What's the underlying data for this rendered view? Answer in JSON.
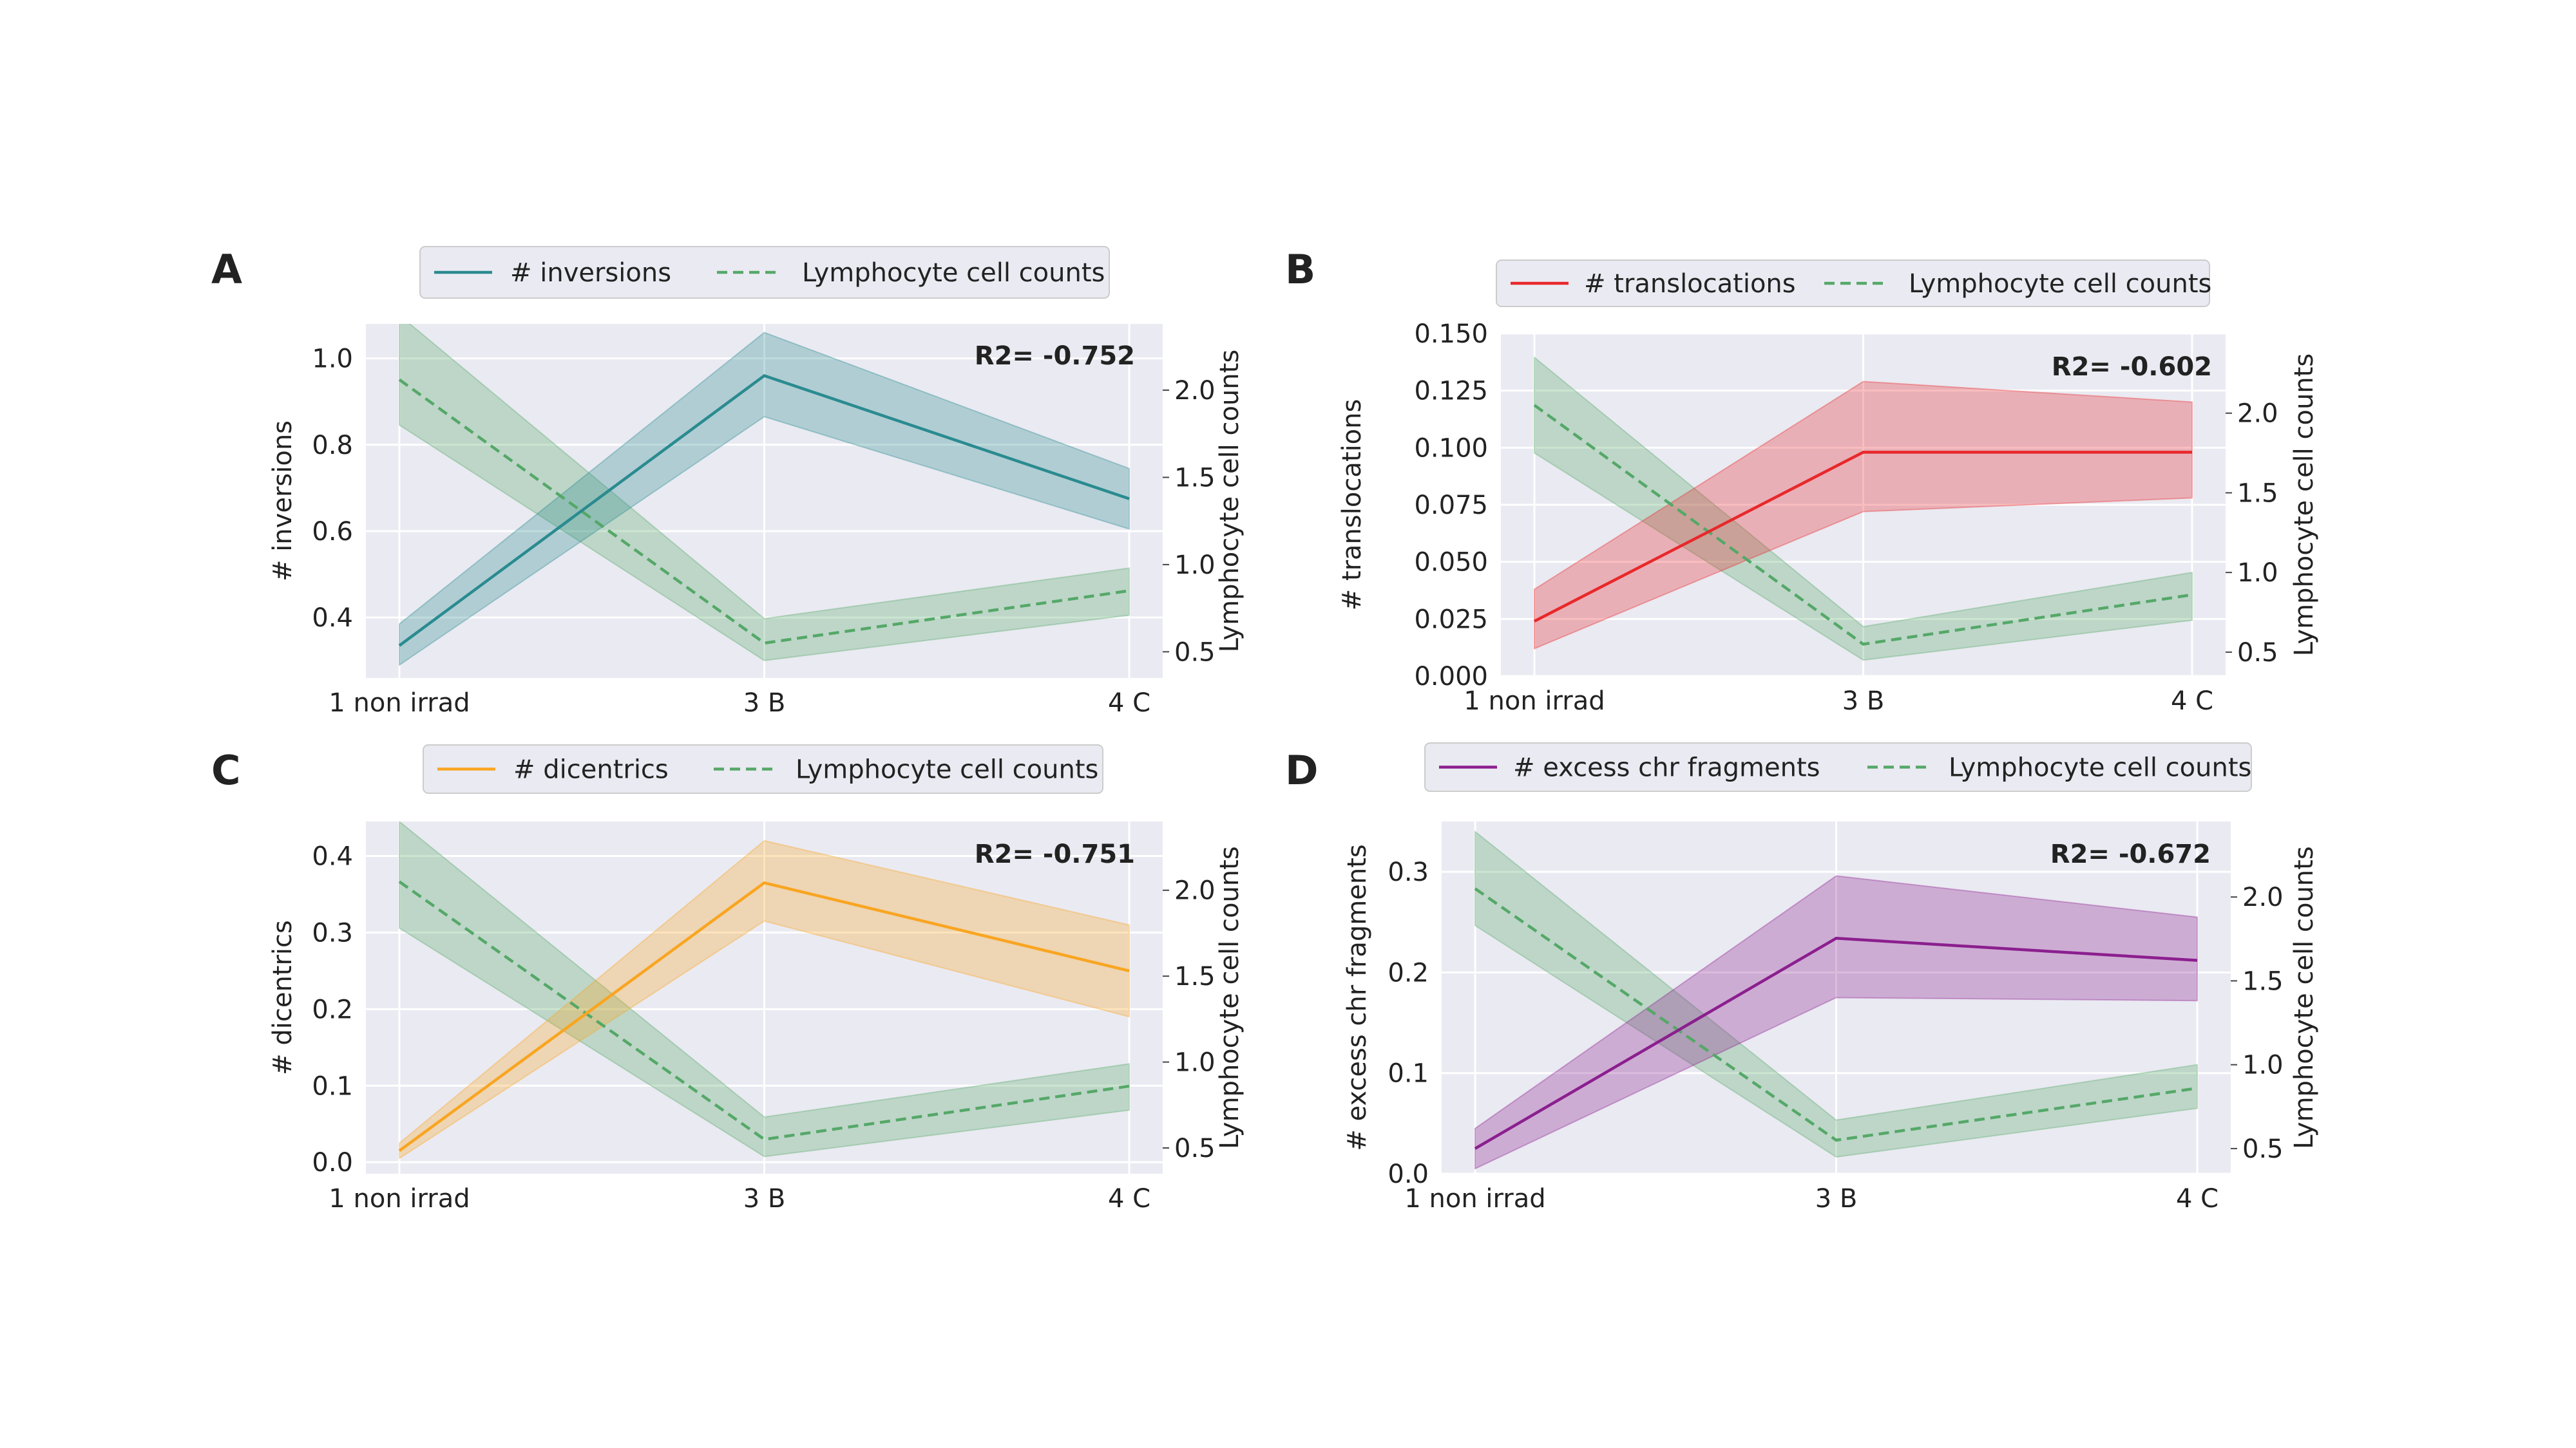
{
  "figure": {
    "panels": [
      {
        "label": "A",
        "r2_text": "R2= -0.752",
        "legend": [
          "# inversions",
          "Lymphocyte cell counts"
        ]
      },
      {
        "label": "B",
        "r2_text": "R2= -0.602",
        "legend": [
          "# translocations",
          "Lymphocyte cell counts"
        ]
      },
      {
        "label": "C",
        "r2_text": "R2= -0.751",
        "legend": [
          "# dicentrics",
          "Lymphocyte cell counts"
        ]
      },
      {
        "label": "D",
        "r2_text": "R2= -0.672",
        "legend": [
          "# excess chr fragments",
          "Lymphocyte cell counts"
        ]
      }
    ]
  },
  "colors": {
    "axes_bg": "#eaeaf2",
    "grid": "#ffffff",
    "lymphocyte": "#55a868",
    "inversions": "#2a8b8f",
    "translocations": "#e8282b",
    "dicentrics": "#f9a521",
    "fragments": "#8b1f8e"
  },
  "chart_data": [
    {
      "type": "line",
      "categories": [
        "1 non irrad",
        "3 B",
        "4 C"
      ],
      "ylabel": "# inversions",
      "y2label": "Lymphocyte cell counts",
      "ylim": [
        0.26,
        1.08
      ],
      "yticks": [
        "0.4",
        "0.6",
        "0.8",
        "1.0"
      ],
      "y2lim": [
        0.35,
        2.38
      ],
      "y2ticks": [
        "0.5",
        "1.0",
        "1.5",
        "2.0"
      ],
      "grid": true,
      "legend_position": "top-center",
      "annotation": "R2= -0.752",
      "series": [
        {
          "name": "# inversions",
          "axis": "left",
          "style": "solid",
          "color": "#2a8b8f",
          "values": [
            0.335,
            0.96,
            0.675
          ],
          "lower": [
            0.29,
            0.865,
            0.605
          ],
          "upper": [
            0.385,
            1.06,
            0.745
          ]
        },
        {
          "name": "Lymphocyte cell counts",
          "axis": "right",
          "style": "dashed",
          "color": "#55a868",
          "values": [
            2.06,
            0.55,
            0.85
          ],
          "lower": [
            1.8,
            0.45,
            0.71
          ],
          "upper": [
            2.43,
            0.69,
            0.98
          ]
        }
      ]
    },
    {
      "type": "line",
      "categories": [
        "1 non irrad",
        "3 B",
        "4 C"
      ],
      "ylabel": "# translocations",
      "y2label": "Lymphocyte cell counts",
      "ylim": [
        0.0,
        0.15
      ],
      "yticks": [
        "0.000",
        "0.025",
        "0.050",
        "0.075",
        "0.100",
        "0.125",
        "0.150"
      ],
      "y2lim": [
        0.35,
        2.5
      ],
      "y2ticks": [
        "0.5",
        "1.0",
        "1.5",
        "2.0"
      ],
      "grid": true,
      "legend_position": "top-center",
      "annotation": "R2= -0.602",
      "series": [
        {
          "name": "# translocations",
          "axis": "left",
          "style": "solid",
          "color": "#e8282b",
          "values": [
            0.024,
            0.098,
            0.098
          ],
          "lower": [
            0.012,
            0.072,
            0.078
          ],
          "upper": [
            0.038,
            0.129,
            0.12
          ]
        },
        {
          "name": "Lymphocyte cell counts",
          "axis": "right",
          "style": "dashed",
          "color": "#55a868",
          "values": [
            2.05,
            0.55,
            0.86
          ],
          "lower": [
            1.75,
            0.45,
            0.7
          ],
          "upper": [
            2.35,
            0.66,
            1.0
          ]
        }
      ]
    },
    {
      "type": "line",
      "categories": [
        "1 non irrad",
        "3 B",
        "4 C"
      ],
      "ylabel": "# dicentrics",
      "y2label": "Lymphocyte cell counts",
      "ylim": [
        -0.015,
        0.445
      ],
      "yticks": [
        "0.0",
        "0.1",
        "0.2",
        "0.3",
        "0.4"
      ],
      "y2lim": [
        0.35,
        2.4
      ],
      "y2ticks": [
        "0.5",
        "1.0",
        "1.5",
        "2.0"
      ],
      "grid": true,
      "legend_position": "top-center",
      "annotation": "R2= -0.751",
      "series": [
        {
          "name": "# dicentrics",
          "axis": "left",
          "style": "solid",
          "color": "#f9a521",
          "values": [
            0.015,
            0.365,
            0.25
          ],
          "lower": [
            0.005,
            0.315,
            0.19
          ],
          "upper": [
            0.025,
            0.42,
            0.31
          ]
        },
        {
          "name": "Lymphocyte cell counts",
          "axis": "right",
          "style": "dashed",
          "color": "#55a868",
          "values": [
            2.05,
            0.55,
            0.86
          ],
          "lower": [
            1.78,
            0.45,
            0.72
          ],
          "upper": [
            2.4,
            0.68,
            0.99
          ]
        }
      ]
    },
    {
      "type": "line",
      "categories": [
        "1 non irrad",
        "3 B",
        "4 C"
      ],
      "ylabel": "# excess chr fragments",
      "y2label": "Lymphocyte cell counts",
      "ylim": [
        0.0,
        0.35
      ],
      "yticks": [
        "0.0",
        "0.1",
        "0.2",
        "0.3"
      ],
      "y2lim": [
        0.35,
        2.45
      ],
      "y2ticks": [
        "0.5",
        "1.0",
        "1.5",
        "2.0"
      ],
      "grid": true,
      "legend_position": "top-center",
      "annotation": "R2= -0.672",
      "series": [
        {
          "name": "# excess chr fragments",
          "axis": "left",
          "style": "solid",
          "color": "#8b1f8e",
          "values": [
            0.025,
            0.234,
            0.212
          ],
          "lower": [
            0.005,
            0.175,
            0.172
          ],
          "upper": [
            0.045,
            0.296,
            0.255
          ]
        },
        {
          "name": "Lymphocyte cell counts",
          "axis": "right",
          "style": "dashed",
          "color": "#55a868",
          "values": [
            2.05,
            0.55,
            0.86
          ],
          "lower": [
            1.83,
            0.45,
            0.74
          ],
          "upper": [
            2.39,
            0.67,
            1.0
          ]
        }
      ]
    }
  ]
}
